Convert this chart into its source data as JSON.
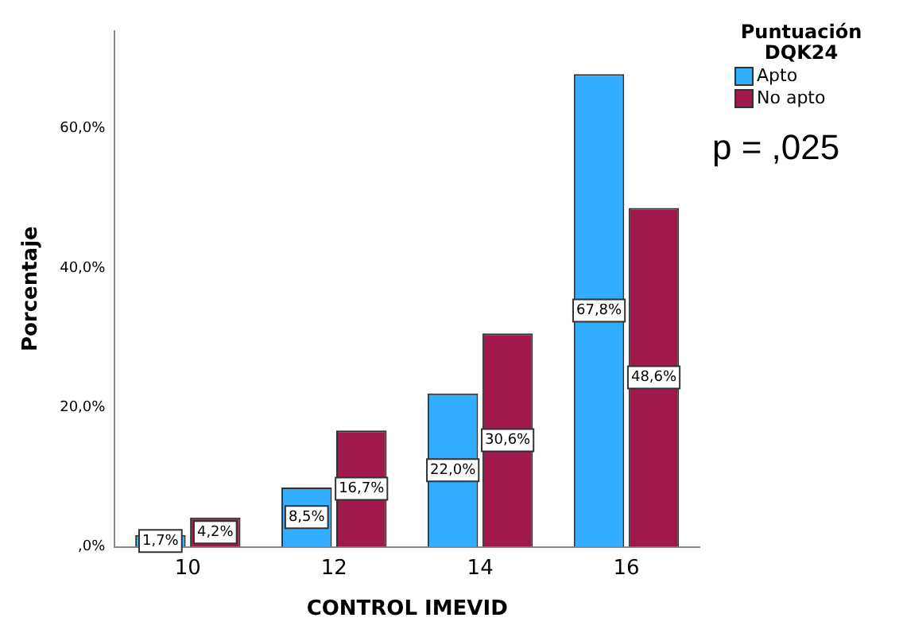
{
  "chart_data": {
    "type": "bar",
    "xlabel": "CONTROL IMEVID",
    "ylabel": "Porcentaje",
    "legend_title": "Puntuación DQK24",
    "categories": [
      "10",
      "12",
      "14",
      "16"
    ],
    "series": [
      {
        "name": "Apto",
        "color": "#33adff",
        "values": [
          1.7,
          8.5,
          22.0,
          67.8
        ],
        "value_labels": [
          "1,7%",
          "8,5%",
          "22,0%",
          "67,8%"
        ]
      },
      {
        "name": "No apto",
        "color": "#a0184c",
        "values": [
          4.2,
          16.7,
          30.6,
          48.6
        ],
        "value_labels": [
          "4,2%",
          "16,7%",
          "30,6%",
          "48,6%"
        ]
      }
    ],
    "ylim": [
      0,
      74
    ],
    "yticks": [
      {
        "value": 0,
        "label": ",0%"
      },
      {
        "value": 20,
        "label": "20,0%"
      },
      {
        "value": 40,
        "label": "40,0%"
      },
      {
        "value": 60,
        "label": "60,0%"
      }
    ],
    "grid": false,
    "legend": "top right",
    "annotations": [
      "p = ,025"
    ]
  }
}
